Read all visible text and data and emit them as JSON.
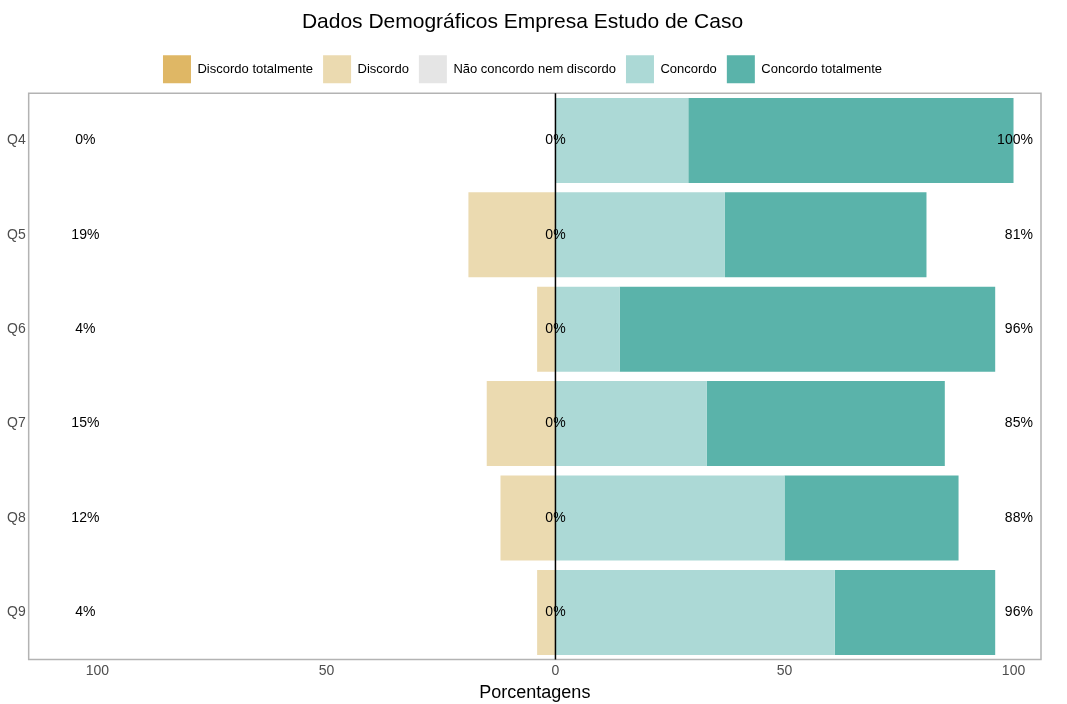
{
  "chart_data": {
    "type": "bar",
    "orientation": "horizontal",
    "stacked": true,
    "title": "Dados Demográficos Empresa Estudo de Caso",
    "xlabel": "Porcentagens",
    "categories": [
      "Q4",
      "Q5",
      "Q6",
      "Q7",
      "Q8",
      "Q9"
    ],
    "series": [
      {
        "name": "Discordo totalmente",
        "color": "#dfb765",
        "values": [
          0,
          0,
          0,
          0,
          0,
          0
        ]
      },
      {
        "name": "Discordo",
        "color": "#ebdab0",
        "values": [
          0,
          -19,
          -4,
          -15,
          -12,
          -4
        ]
      },
      {
        "name": "Não concordo nem discordo",
        "color": "#e5e5e5",
        "values": [
          0,
          0,
          0,
          0,
          0,
          0
        ]
      },
      {
        "name": "Concordo",
        "color": "#acd9d6",
        "values": [
          29,
          37,
          14,
          33,
          50,
          61
        ]
      },
      {
        "name": "Concordo totalmente",
        "color": "#5ab3aa",
        "values": [
          71,
          44,
          82,
          52,
          38,
          35
        ]
      }
    ],
    "xlim": [
      -115,
      106
    ],
    "xticks": [
      {
        "value": -100,
        "label": "100"
      },
      {
        "value": -50,
        "label": "50"
      },
      0,
      50,
      100
    ],
    "ref_lines": [
      {
        "axis": "x",
        "value": 0,
        "color": "#000000"
      }
    ],
    "legend": "top",
    "grid": false,
    "annotations": [
      "0%",
      "0%",
      "100%",
      "19%",
      "0%",
      "81%",
      "4%",
      "0%",
      "96%",
      "15%",
      "0%",
      "85%",
      "12%",
      "0%",
      "88%",
      "4%",
      "0%",
      "96%"
    ]
  }
}
